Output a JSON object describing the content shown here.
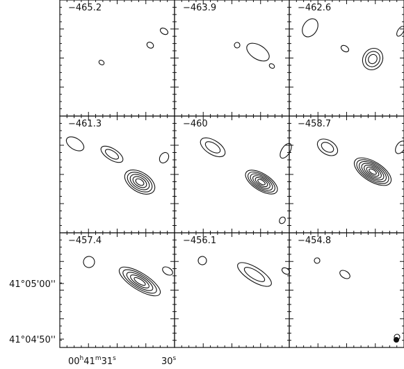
{
  "panels": [
    {
      "label": "−465.2"
    },
    {
      "label": "−463.9"
    },
    {
      "label": "−462.6"
    },
    {
      "label": "−461.3"
    },
    {
      "label": "−460"
    },
    {
      "label": "−458.7"
    },
    {
      "label": "−457.4"
    },
    {
      "label": "−456.1"
    },
    {
      "label": "−454.8"
    }
  ],
  "y_axis_labels": [
    "41°05'00''",
    "41°04'50''"
  ],
  "x_axis_labels": [
    {
      "parts": [
        "00",
        "h",
        "41",
        "m",
        "31",
        "s"
      ]
    },
    {
      "parts": [
        "30",
        "s"
      ]
    }
  ]
}
